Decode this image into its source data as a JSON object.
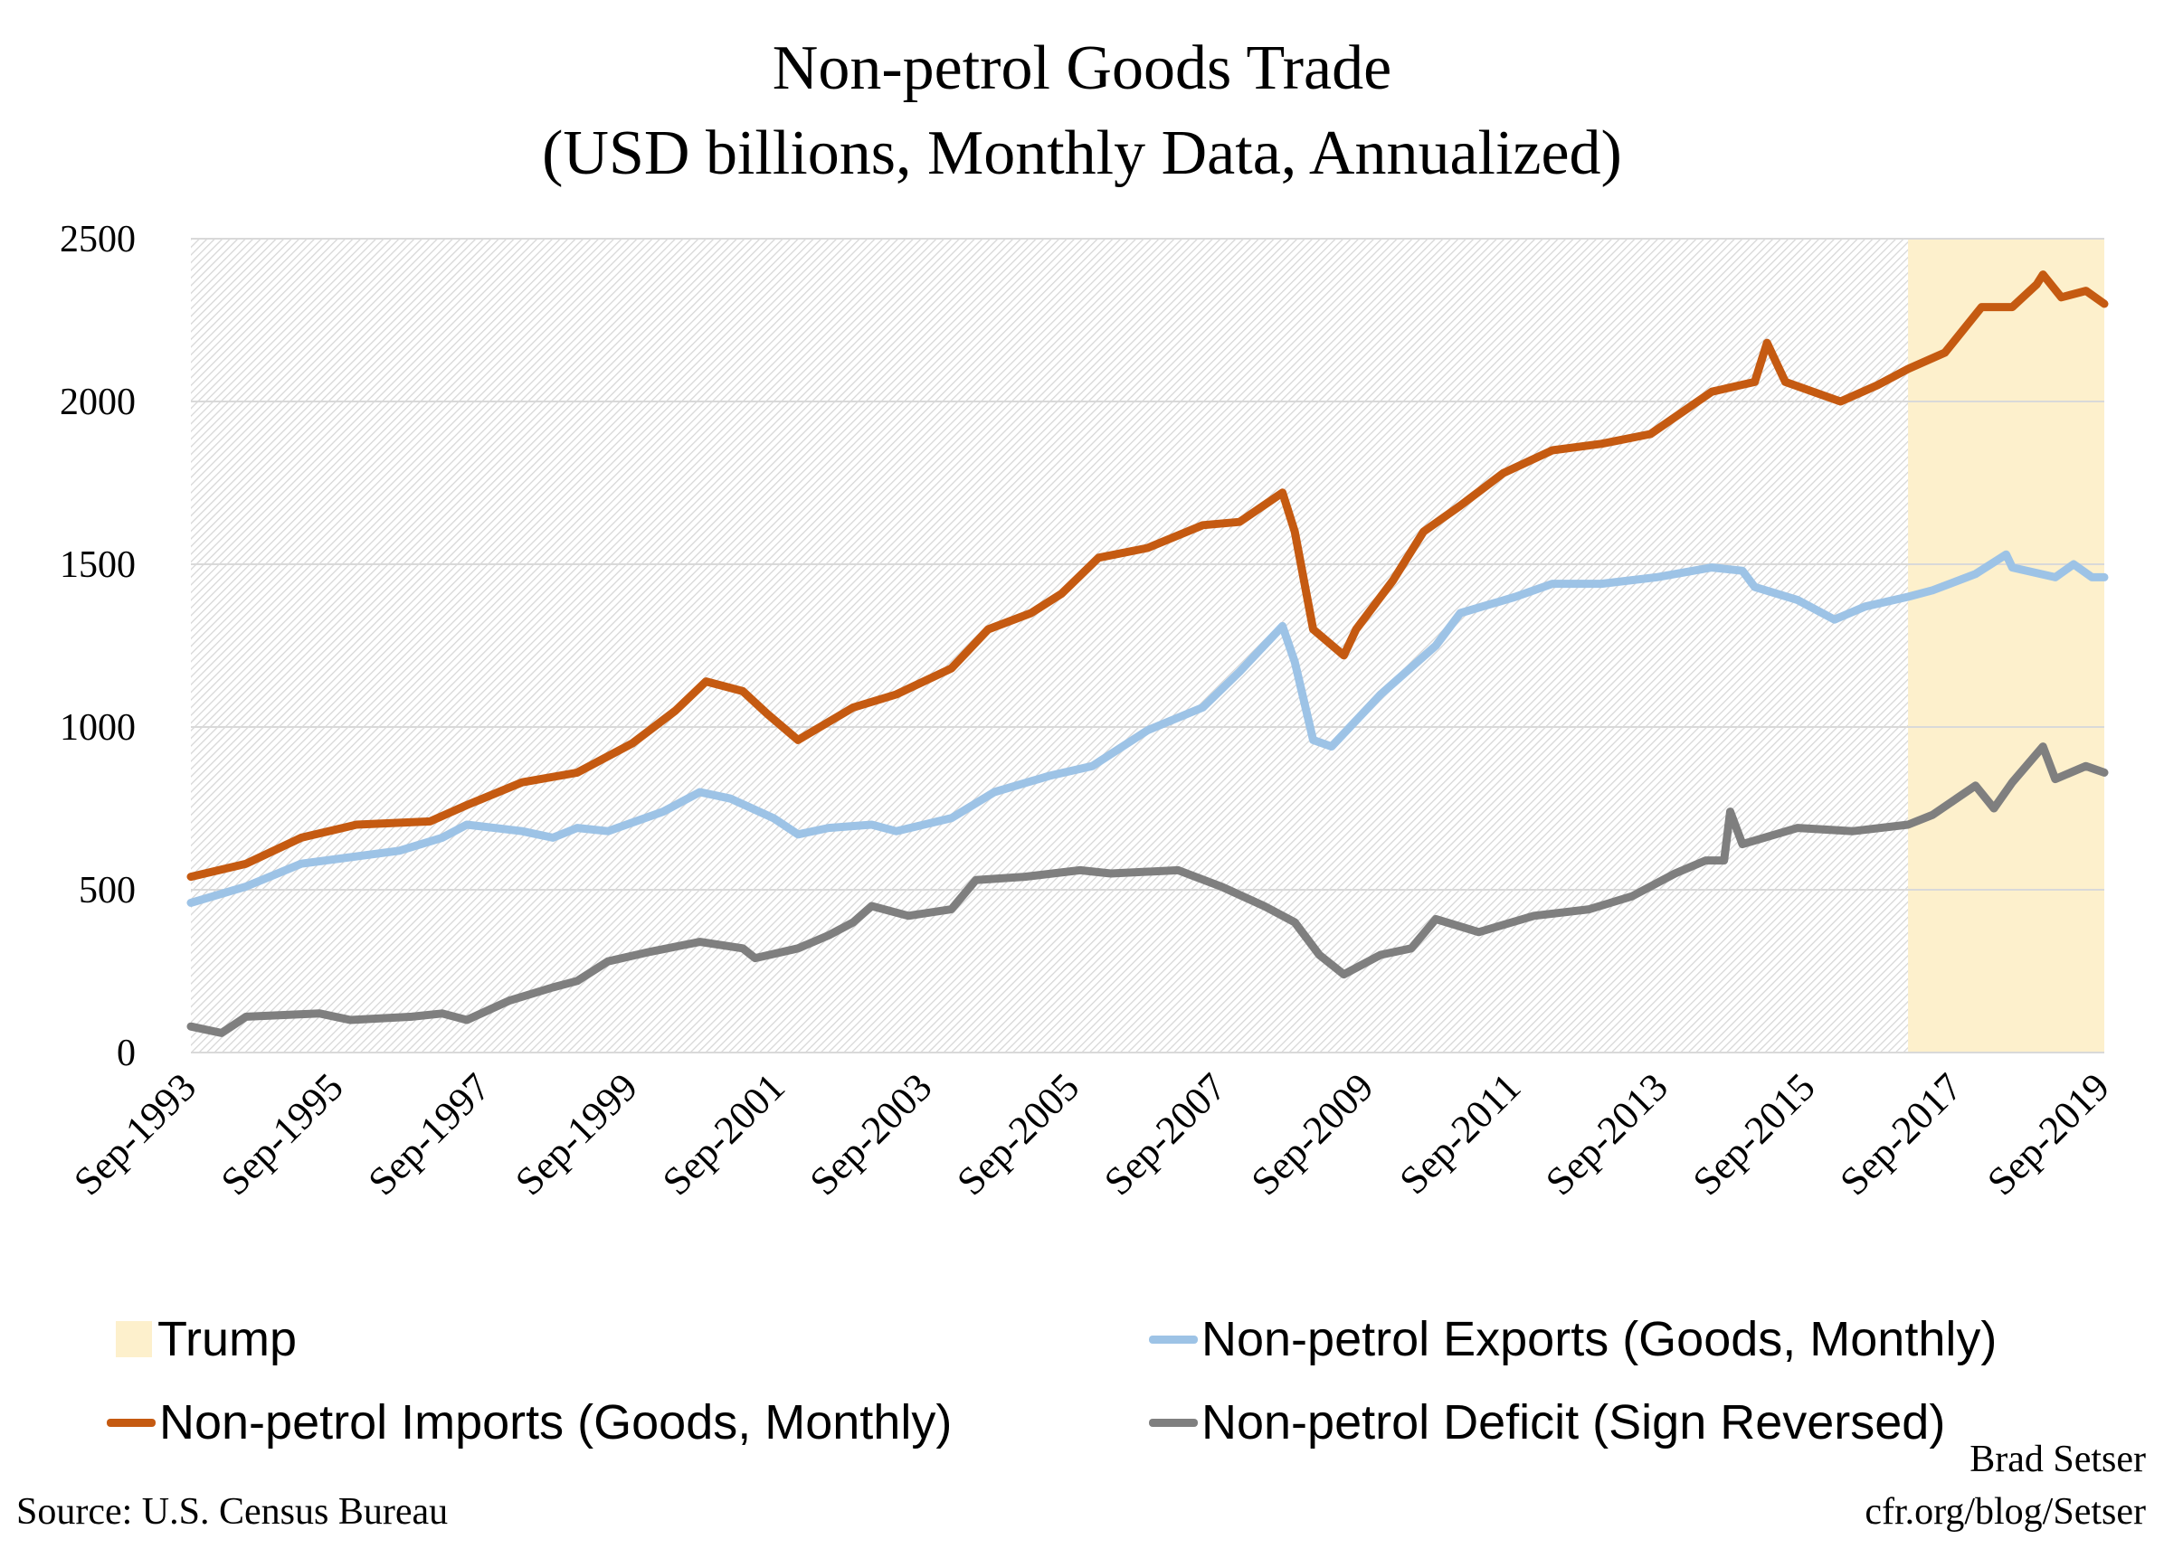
{
  "chart_data": {
    "type": "line",
    "title": "Non-petrol Goods Trade",
    "subtitle": "(USD billions, Monthly Data, Annualized)",
    "xlabel": "",
    "ylabel": "",
    "x_range": [
      "1993-09",
      "2019-09"
    ],
    "x_tick_labels": [
      "Sep-1993",
      "Sep-1995",
      "Sep-1997",
      "Sep-1999",
      "Sep-2001",
      "Sep-2003",
      "Sep-2005",
      "Sep-2007",
      "Sep-2009",
      "Sep-2011",
      "Sep-2013",
      "Sep-2015",
      "Sep-2017",
      "Sep-2019"
    ],
    "x_tick_dates": [
      "1993-09",
      "1995-09",
      "1997-09",
      "1999-09",
      "2001-09",
      "2003-09",
      "2005-09",
      "2007-09",
      "2009-09",
      "2011-09",
      "2013-09",
      "2015-09",
      "2017-09",
      "2019-09"
    ],
    "ylim": [
      0,
      2500
    ],
    "y_ticks": [
      0,
      500,
      1000,
      1500,
      2000,
      2500
    ],
    "grid": true,
    "legend_placement": "bottom",
    "shaded_region": {
      "name": "Trump",
      "start": "2017-01",
      "end": "2019-09",
      "color": "#fdf0cc"
    },
    "series": [
      {
        "name": "Non-petrol Exports (Goods, Monthly)",
        "color": "#9dc3e6",
        "points": [
          [
            "1993-09",
            460
          ],
          [
            "1994-06",
            510
          ],
          [
            "1995-03",
            580
          ],
          [
            "1996-07",
            620
          ],
          [
            "1997-02",
            660
          ],
          [
            "1997-06",
            700
          ],
          [
            "1998-03",
            680
          ],
          [
            "1998-08",
            660
          ],
          [
            "1998-12",
            690
          ],
          [
            "1999-05",
            680
          ],
          [
            "2000-02",
            740
          ],
          [
            "2000-08",
            800
          ],
          [
            "2001-01",
            780
          ],
          [
            "2001-08",
            720
          ],
          [
            "2001-12",
            670
          ],
          [
            "2002-05",
            690
          ],
          [
            "2002-12",
            700
          ],
          [
            "2003-04",
            680
          ],
          [
            "2004-01",
            720
          ],
          [
            "2004-08",
            800
          ],
          [
            "2005-05",
            850
          ],
          [
            "2005-12",
            880
          ],
          [
            "2006-09",
            990
          ],
          [
            "2007-06",
            1060
          ],
          [
            "2007-12",
            1170
          ],
          [
            "2008-07",
            1310
          ],
          [
            "2008-09",
            1200
          ],
          [
            "2008-12",
            960
          ],
          [
            "2009-03",
            940
          ],
          [
            "2009-11",
            1100
          ],
          [
            "2010-08",
            1250
          ],
          [
            "2010-12",
            1350
          ],
          [
            "2011-09",
            1400
          ],
          [
            "2012-03",
            1440
          ],
          [
            "2012-11",
            1440
          ],
          [
            "2013-08",
            1460
          ],
          [
            "2014-05",
            1490
          ],
          [
            "2014-10",
            1480
          ],
          [
            "2014-12",
            1430
          ],
          [
            "2015-07",
            1390
          ],
          [
            "2016-01",
            1330
          ],
          [
            "2016-06",
            1370
          ],
          [
            "2017-01",
            1400
          ],
          [
            "2017-05",
            1420
          ],
          [
            "2017-12",
            1470
          ],
          [
            "2018-05",
            1530
          ],
          [
            "2018-06",
            1490
          ],
          [
            "2019-01",
            1460
          ],
          [
            "2019-04",
            1500
          ],
          [
            "2019-07",
            1460
          ],
          [
            "2019-09",
            1460
          ]
        ]
      },
      {
        "name": "Non-petrol Imports (Goods, Monthly)",
        "color": "#c55a11",
        "points": [
          [
            "1993-09",
            540
          ],
          [
            "1994-06",
            580
          ],
          [
            "1995-03",
            660
          ],
          [
            "1995-12",
            700
          ],
          [
            "1996-12",
            710
          ],
          [
            "1997-06",
            760
          ],
          [
            "1998-03",
            830
          ],
          [
            "1998-12",
            860
          ],
          [
            "1999-09",
            950
          ],
          [
            "2000-04",
            1050
          ],
          [
            "2000-09",
            1140
          ],
          [
            "2001-03",
            1110
          ],
          [
            "2001-07",
            1040
          ],
          [
            "2001-12",
            960
          ],
          [
            "2002-09",
            1060
          ],
          [
            "2003-04",
            1100
          ],
          [
            "2004-01",
            1180
          ],
          [
            "2004-07",
            1300
          ],
          [
            "2005-02",
            1350
          ],
          [
            "2005-07",
            1410
          ],
          [
            "2006-01",
            1520
          ],
          [
            "2006-09",
            1550
          ],
          [
            "2007-06",
            1620
          ],
          [
            "2007-12",
            1630
          ],
          [
            "2008-07",
            1720
          ],
          [
            "2008-09",
            1600
          ],
          [
            "2008-12",
            1300
          ],
          [
            "2009-05",
            1220
          ],
          [
            "2009-07",
            1300
          ],
          [
            "2010-01",
            1450
          ],
          [
            "2010-06",
            1600
          ],
          [
            "2010-12",
            1680
          ],
          [
            "2011-07",
            1780
          ],
          [
            "2012-03",
            1850
          ],
          [
            "2012-11",
            1870
          ],
          [
            "2013-07",
            1900
          ],
          [
            "2014-05",
            2030
          ],
          [
            "2014-12",
            2060
          ],
          [
            "2015-02",
            2180
          ],
          [
            "2015-05",
            2060
          ],
          [
            "2016-02",
            2000
          ],
          [
            "2016-08",
            2050
          ],
          [
            "2017-01",
            2100
          ],
          [
            "2017-07",
            2150
          ],
          [
            "2018-01",
            2290
          ],
          [
            "2018-06",
            2290
          ],
          [
            "2018-10",
            2360
          ],
          [
            "2018-11",
            2390
          ],
          [
            "2019-02",
            2320
          ],
          [
            "2019-06",
            2340
          ],
          [
            "2019-09",
            2300
          ]
        ]
      },
      {
        "name": "Non-petrol Deficit (Sign Reversed)",
        "color": "#7f7f7f",
        "points": [
          [
            "1993-09",
            80
          ],
          [
            "1994-02",
            60
          ],
          [
            "1994-06",
            110
          ],
          [
            "1995-06",
            120
          ],
          [
            "1995-11",
            100
          ],
          [
            "1996-09",
            110
          ],
          [
            "1997-02",
            120
          ],
          [
            "1997-06",
            100
          ],
          [
            "1998-01",
            160
          ],
          [
            "1998-08",
            200
          ],
          [
            "1998-12",
            220
          ],
          [
            "1999-05",
            280
          ],
          [
            "1999-12",
            310
          ],
          [
            "2000-08",
            340
          ],
          [
            "2001-03",
            320
          ],
          [
            "2001-05",
            290
          ],
          [
            "2001-12",
            320
          ],
          [
            "2002-05",
            360
          ],
          [
            "2002-09",
            400
          ],
          [
            "2002-12",
            450
          ],
          [
            "2003-06",
            420
          ],
          [
            "2004-01",
            440
          ],
          [
            "2004-05",
            530
          ],
          [
            "2005-01",
            540
          ],
          [
            "2005-10",
            560
          ],
          [
            "2006-03",
            550
          ],
          [
            "2007-02",
            560
          ],
          [
            "2007-09",
            510
          ],
          [
            "2008-04",
            450
          ],
          [
            "2008-09",
            400
          ],
          [
            "2009-01",
            300
          ],
          [
            "2009-05",
            240
          ],
          [
            "2009-11",
            300
          ],
          [
            "2010-04",
            320
          ],
          [
            "2010-08",
            410
          ],
          [
            "2011-03",
            370
          ],
          [
            "2011-12",
            420
          ],
          [
            "2012-09",
            440
          ],
          [
            "2013-04",
            480
          ],
          [
            "2013-11",
            550
          ],
          [
            "2014-04",
            590
          ],
          [
            "2014-07",
            590
          ],
          [
            "2014-08",
            740
          ],
          [
            "2014-10",
            640
          ],
          [
            "2015-07",
            690
          ],
          [
            "2016-04",
            680
          ],
          [
            "2017-01",
            700
          ],
          [
            "2017-05",
            730
          ],
          [
            "2017-12",
            820
          ],
          [
            "2018-03",
            750
          ],
          [
            "2018-06",
            830
          ],
          [
            "2018-11",
            940
          ],
          [
            "2019-01",
            840
          ],
          [
            "2019-06",
            880
          ],
          [
            "2019-09",
            860
          ]
        ]
      }
    ]
  },
  "legend": {
    "trump": "Trump",
    "exports": "Non-petrol Exports (Goods, Monthly)",
    "imports": "Non-petrol Imports (Goods, Monthly)",
    "deficit": "Non-petrol Deficit (Sign Reversed)"
  },
  "footer": {
    "source": "Source: U.S. Census Bureau",
    "author": "Brad Setser",
    "url": "cfr.org/blog/Setser"
  }
}
